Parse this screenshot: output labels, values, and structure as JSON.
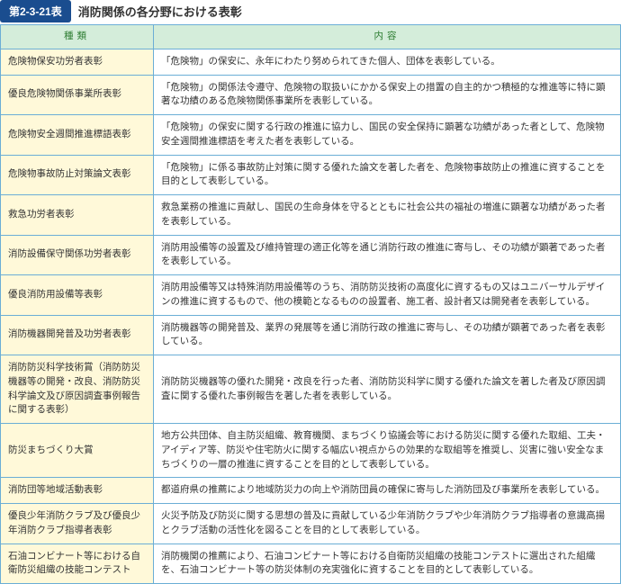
{
  "header": {
    "badge": "第2-3-21表",
    "title": "消防関係の各分野における表彰"
  },
  "columns": {
    "category": "種類",
    "content": "内容"
  },
  "rows": [
    {
      "cat": "危険物保安功労者表彰",
      "desc": "「危険物」の保安に、永年にわたり努められてきた個人、団体を表彰している。"
    },
    {
      "cat": "優良危険物関係事業所表彰",
      "desc": "「危険物」の関係法令遵守、危険物の取扱いにかかる保安上の措置の自主的かつ積極的な推進等に特に顕著な功績のある危険物関係事業所を表彰している。"
    },
    {
      "cat": "危険物安全週間推進標語表彰",
      "desc": "「危険物」の保安に関する行政の推進に協力し、国民の安全保持に顕著な功績があった者として、危険物安全週間推進標語を考えた者を表彰している。"
    },
    {
      "cat": "危険物事故防止対策論文表彰",
      "desc": "「危険物」に係る事故防止対策に関する優れた論文を著した者を、危険物事故防止の推進に資することを目的として表彰している。"
    },
    {
      "cat": "救急功労者表彰",
      "desc": "救急業務の推進に貢献し、国民の生命身体を守るとともに社会公共の福祉の増進に顕著な功績があった者を表彰している。"
    },
    {
      "cat": "消防設備保守関係功労者表彰",
      "desc": "消防用設備等の設置及び維持管理の適正化等を通じ消防行政の推進に寄与し、その功績が顕著であった者を表彰している。"
    },
    {
      "cat": "優良消防用設備等表彰",
      "desc": "消防用設備等又は特殊消防用設備等のうち、消防防災技術の高度化に資するもの又はユニバーサルデザインの推進に資するもので、他の模範となるものの設置者、施工者、設計者又は開発者を表彰している。"
    },
    {
      "cat": "消防機器開発普及功労者表彰",
      "desc": "消防機器等の開発普及、業界の発展等を通じ消防行政の推進に寄与し、その功績が顕著であった者を表彰している。"
    },
    {
      "cat": "消防防災科学技術賞（消防防災機器等の開発・改良、消防防災科学論文及び原因調査事例報告に関する表彰）",
      "desc": "消防防災機器等の優れた開発・改良を行った者、消防防災科学に関する優れた論文を著した者及び原因調査に関する優れた事例報告を著した者を表彰している。"
    },
    {
      "cat": "防災まちづくり大賞",
      "desc": "地方公共団体、自主防災組織、教育機関、まちづくり協議会等における防災に関する優れた取組、工夫・アイディア等、防災や住宅防火に関する幅広い視点からの効果的な取組等を推奨し、災害に強い安全なまちづくりの一層の推進に資することを目的として表彰している。"
    },
    {
      "cat": "消防団等地域活動表彰",
      "desc": "都道府県の推薦により地域防災力の向上や消防団員の確保に寄与した消防団及び事業所を表彰している。"
    },
    {
      "cat": "優良少年消防クラブ及び優良少年消防クラブ指導者表彰",
      "desc": "火災予防及び防災に関する思想の普及に貢献している少年消防クラブや少年消防クラブ指導者の意識高揚とクラブ活動の活性化を図ることを目的として表彰している。"
    },
    {
      "cat": "石油コンビナート等における自衛防災組織の技能コンテスト",
      "desc": "消防機関の推薦により、石油コンビナート等における自衛防災組織の技能コンテストに選出された組織を、石油コンビナート等の防災体制の充実強化に資することを目的として表彰している。"
    }
  ]
}
